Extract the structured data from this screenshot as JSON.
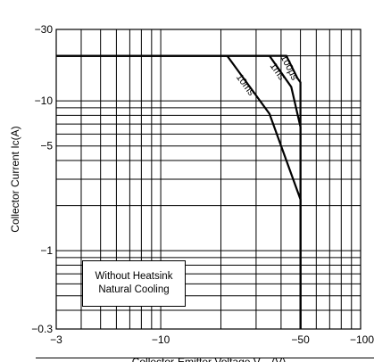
{
  "chart_data": {
    "type": "line",
    "title": "",
    "xlabel": "Collector-Emitter Voltage V",
    "xlabel_subscript": "CE",
    "xlabel_unit": "(V)",
    "ylabel": "Collector Current Ic(A)",
    "xscale": "log",
    "yscale": "log",
    "xlim": [
      3,
      100
    ],
    "ylim": [
      0.3,
      30
    ],
    "grid": true,
    "xticks": [
      {
        "value": 3,
        "label": "−3"
      },
      {
        "value": 10,
        "label": "−10"
      },
      {
        "value": 50,
        "label": "−50"
      },
      {
        "value": 100,
        "label": "−100"
      }
    ],
    "yticks": [
      {
        "value": 0.3,
        "label": "−0.3"
      },
      {
        "value": 1,
        "label": "−1"
      },
      {
        "value": 5,
        "label": "−5"
      },
      {
        "value": 10,
        "label": "−10"
      },
      {
        "value": 30,
        "label": "−30"
      }
    ],
    "series": [
      {
        "name": "100μs",
        "points": [
          [
            3,
            20
          ],
          [
            42.5,
            20
          ],
          [
            48.3,
            14.2
          ],
          [
            50,
            13.3
          ],
          [
            50,
            0.3
          ]
        ]
      },
      {
        "name": "1ms",
        "points": [
          [
            3,
            20
          ],
          [
            35,
            20
          ],
          [
            45,
            12.4
          ],
          [
            50,
            6.7
          ],
          [
            50,
            0.3
          ]
        ]
      },
      {
        "name": "10ms",
        "points": [
          [
            3,
            20
          ],
          [
            21.5,
            20
          ],
          [
            35,
            8.2
          ],
          [
            50,
            2.2
          ],
          [
            50,
            0.3
          ]
        ]
      }
    ],
    "annotation": [
      "Without Heatsink",
      "Natural Cooling"
    ]
  }
}
